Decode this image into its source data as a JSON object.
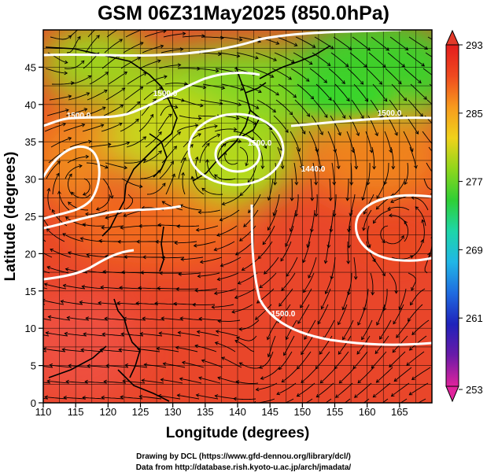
{
  "title": "GSM 06Z31May2025 (850.0hPa)",
  "xlabel": "Longitude (degrees)",
  "ylabel": "Latitude  (degrees)",
  "x_ticks": [
    "110",
    "115",
    "120",
    "125",
    "130",
    "135",
    "140",
    "145",
    "150",
    "155",
    "160",
    "165"
  ],
  "y_ticks": [
    "0",
    "5",
    "10",
    "15",
    "20",
    "25",
    "30",
    "35",
    "40",
    "45"
  ],
  "colorbar": {
    "ticks": [
      "293",
      "285",
      "277",
      "269",
      "261",
      "253"
    ],
    "min": 253,
    "max": 293,
    "colors": [
      "#e0239c",
      "#6a1aa8",
      "#1f22bb",
      "#1f6be0",
      "#20b7e6",
      "#1ed6a8",
      "#2fcf35",
      "#8fd61c",
      "#f0d21c",
      "#f79a1d",
      "#ef4a1f",
      "#e31d1d"
    ]
  },
  "contours": {
    "labels": [
      "1500.0",
      "1500.0",
      "1500.0",
      "1440.0",
      "1500.0",
      "1500.0"
    ]
  },
  "credits": {
    "line1": "Drawing by DCL (https://www.gfd-dennou.org/library/dcl/)",
    "line2": "Data from http://database.rish.kyoto-u.ac.jp/arch/jmadata/"
  }
}
